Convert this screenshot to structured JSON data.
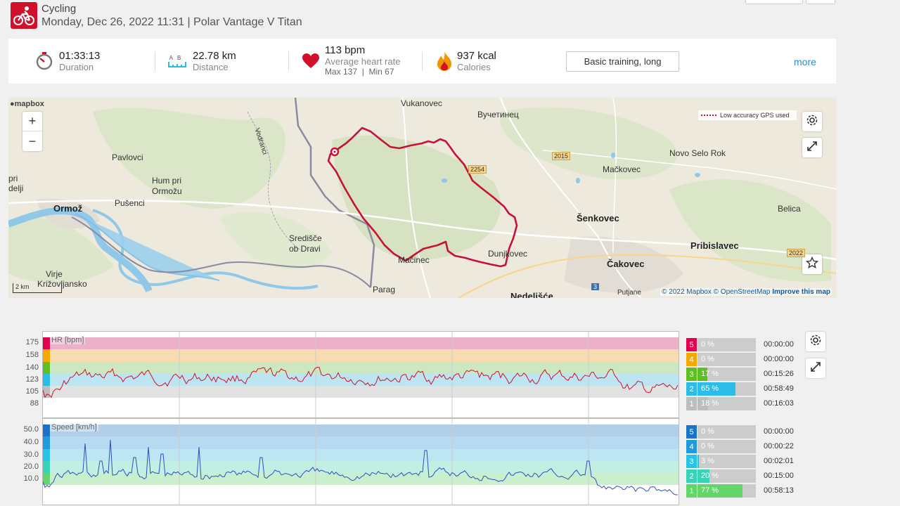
{
  "header": {
    "sport": "Cycling",
    "subtitle": "Monday, Dec 26, 2022 11:31 | Polar Vantage V Titan",
    "sport_icon": "bicycle-icon",
    "brand_color": "#d1112b"
  },
  "summary": {
    "duration": {
      "value": "01:33:13",
      "label": "Duration"
    },
    "distance": {
      "ab_a": "A",
      "ab_b": "B",
      "value": "22.78 km",
      "label": "Distance"
    },
    "heart_rate": {
      "value": "113 bpm",
      "label": "Average heart rate",
      "max_text": "Max 137",
      "sep": "|",
      "min_text": "Min 67"
    },
    "calories": {
      "value": "937 kcal",
      "label": "Calories"
    },
    "training_benefit": "Basic training, long",
    "more": "more"
  },
  "map": {
    "logo": "mapbox",
    "zoom_in": "+",
    "zoom_out": "−",
    "gps_note": "Low accuracy GPS used",
    "scale": "2 km",
    "attribution_copy": "© 2022 Mapbox © OpenStreetMap",
    "attribution_link": "Improve this map",
    "route_color": "#c8103b",
    "places": {
      "vukanovec": "Vukanovec",
      "vucetinec": "Вучетинец",
      "pavlovci": "Pavlovci",
      "hum_pri": "Hum pri",
      "ormozu": "Ormožu",
      "pusenci": "Pušenci",
      "ormoz": "Ormož",
      "pri": "pri",
      "delji": "delji",
      "sredisce": "Središče",
      "ob_dravi": "ob Dravi",
      "virje": "Virje",
      "krizovljansko": "Križovljansko",
      "parag": "Parag",
      "nedelisce": "Nedelišće",
      "mackovec": "Mačkovec",
      "novo_selo": "Novo Selo Rok",
      "senkovec": "Šenkovec",
      "belica": "Belica",
      "pribislavec": "Pribislavec",
      "cakovec": "Čakovec",
      "dunjkovec": "Dunjkovec",
      "macinec": "Mačinec",
      "putjane": "Putjane",
      "vodranci": "Vodranci",
      "road_2254": "2254",
      "road_2015": "2015",
      "road_2022": "2022",
      "road_3": "3"
    }
  },
  "hr_chart": {
    "title": "HR [bpm]",
    "yticks": [
      "175",
      "158",
      "140",
      "123",
      "105",
      "88"
    ],
    "zones": [
      {
        "num": "5",
        "pct": "0 %",
        "fraction": 0.0,
        "time": "00:00:00",
        "color": "#e0004d",
        "band": "#ebb1c8"
      },
      {
        "num": "4",
        "pct": "0 %",
        "fraction": 0.0,
        "time": "00:00:00",
        "color": "#f4a800",
        "band": "#f6dcb0"
      },
      {
        "num": "3",
        "pct": "17 %",
        "fraction": 0.17,
        "time": "00:15:26",
        "color": "#5fbe23",
        "band": "#cde7c0"
      },
      {
        "num": "2",
        "pct": "65 %",
        "fraction": 0.65,
        "time": "00:58:49",
        "color": "#2bbde8",
        "band": "#bde4f1"
      },
      {
        "num": "1",
        "pct": "18 %",
        "fraction": 0.18,
        "time": "00:16:03",
        "color": "#bdbdbd",
        "band": "#e2e2e2"
      }
    ]
  },
  "speed_chart": {
    "title": "Speed [km/h]",
    "yticks": [
      "50.0",
      "40.0",
      "30.0",
      "20.0",
      "10.0"
    ],
    "zones": [
      {
        "num": "5",
        "pct": "0 %",
        "fraction": 0.0,
        "time": "00:00:00",
        "color": "#1a73c7",
        "band": "#b1cfe9"
      },
      {
        "num": "4",
        "pct": "0 %",
        "fraction": 0.0,
        "time": "00:00:22",
        "color": "#1e9be0",
        "band": "#b8daf0"
      },
      {
        "num": "3",
        "pct": "3 %",
        "fraction": 0.03,
        "time": "00:02:01",
        "color": "#29c3e8",
        "band": "#bde6f2"
      },
      {
        "num": "2",
        "pct": "20 %",
        "fraction": 0.2,
        "time": "00:15:00",
        "color": "#39d3b8",
        "band": "#c3eee3"
      },
      {
        "num": "1",
        "pct": "77 %",
        "fraction": 0.77,
        "time": "00:58:13",
        "color": "#63d56b",
        "band": "#c9efcc"
      }
    ]
  }
}
